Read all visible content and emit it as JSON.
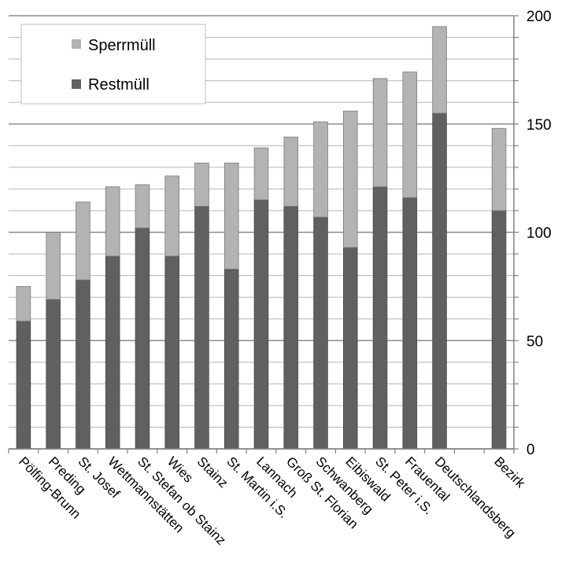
{
  "chart_data": {
    "type": "bar",
    "stacked": true,
    "categories": [
      "Pölfing-Brunn",
      "Preding",
      "St. Josef",
      "Wettmannstätten",
      "St. Stefan ob Stainz",
      "Wies",
      "Stainz",
      "St. Martin i.S.",
      "Lannach",
      "Groß St. Florian",
      "Schwanberg",
      "Eibiswald",
      "St. Peter i.S.",
      "Frauental",
      "Deutschlandsberg",
      "",
      "Bezirk"
    ],
    "series": [
      {
        "name": "Restmüll",
        "color": "#606060",
        "values": [
          59,
          69,
          78,
          89,
          102,
          89,
          112,
          83,
          115,
          112,
          107,
          93,
          121,
          116,
          155,
          null,
          110
        ]
      },
      {
        "name": "Sperrmüll",
        "color": "#b3b3b3",
        "values": [
          16,
          31,
          36,
          32,
          20,
          37,
          20,
          49,
          24,
          32,
          44,
          63,
          50,
          58,
          40,
          null,
          38
        ]
      }
    ],
    "ylim": [
      0,
      200
    ],
    "yticks": [
      0,
      50,
      100,
      150,
      200
    ],
    "y_axis_side": "right",
    "grid": true,
    "legend_position": "top-left"
  }
}
